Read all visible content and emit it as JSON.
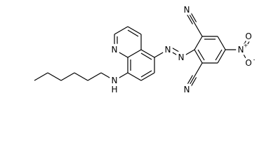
{
  "atoms": {
    "quinoline_n": "N",
    "amine_n": "N",
    "amine_h": "H",
    "azo_n1": "N",
    "azo_n2": "N",
    "nitrile_n_top": "N",
    "nitrile_n_bottom": "N",
    "nitro_n": "N",
    "nitro_charge": "+",
    "oxygen_top": "O",
    "oxygen_bottom": "O",
    "oxygen_charge": "-"
  }
}
